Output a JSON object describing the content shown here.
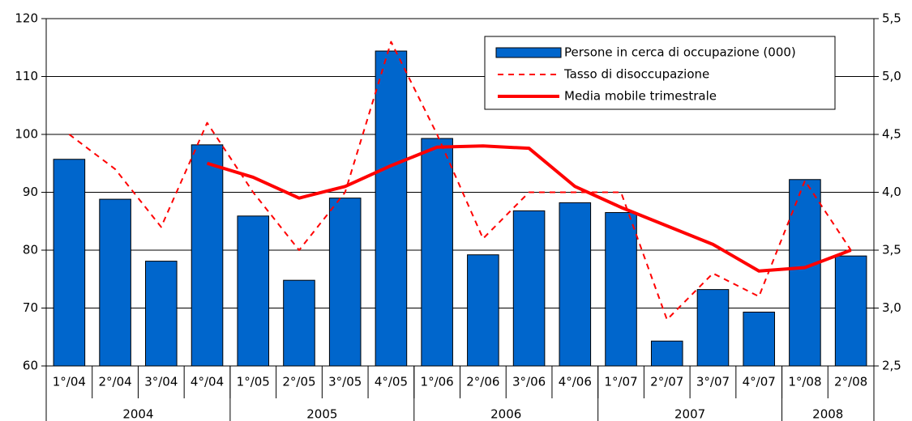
{
  "chart_data": {
    "type": "bar-line",
    "categories": [
      "1°/04",
      "2°/04",
      "3°/04",
      "4°/04",
      "1°/05",
      "2°/05",
      "3°/05",
      "4°/05",
      "1°/06",
      "2°/06",
      "3°/06",
      "4°/06",
      "1°/07",
      "2°/07",
      "3°/07",
      "4°/07",
      "1°/08",
      "2°/08"
    ],
    "years": [
      "2004",
      "2004",
      "2004",
      "2004",
      "2005",
      "2005",
      "2005",
      "2005",
      "2006",
      "2006",
      "2006",
      "2006",
      "2007",
      "2007",
      "2007",
      "2007",
      "2008",
      "2008"
    ],
    "series": [
      {
        "name": "Persone in cerca di occupazione (000)",
        "type": "bar",
        "color": "#0066cc",
        "values": [
          95.7,
          88.8,
          78.1,
          98.2,
          85.9,
          74.8,
          89.0,
          114.4,
          99.3,
          79.2,
          86.8,
          88.2,
          86.5,
          64.3,
          73.2,
          69.3,
          92.2,
          79.0
        ]
      },
      {
        "name": "Tasso di disoccupazione",
        "type": "line",
        "dashed": true,
        "color": "#ff0000",
        "axis": "y2",
        "values": [
          4.5,
          4.2,
          3.7,
          4.6,
          4.0,
          3.5,
          4.0,
          5.3,
          4.5,
          3.6,
          4.0,
          4.0,
          4.0,
          2.9,
          3.3,
          3.1,
          4.1,
          3.5
        ]
      },
      {
        "name": "Media mobile trimestrale",
        "type": "line",
        "dashed": false,
        "color": "#ff0000",
        "axis": "y2",
        "values": [
          null,
          null,
          null,
          4.25,
          4.13,
          3.95,
          4.05,
          4.23,
          4.39,
          4.4,
          4.38,
          4.05,
          3.87,
          3.71,
          3.55,
          3.32,
          3.35,
          3.5
        ]
      }
    ],
    "ylim": [
      60,
      120
    ],
    "yticks": [
      60,
      70,
      80,
      90,
      100,
      110,
      120
    ],
    "y2lim": [
      2.5,
      5.5
    ],
    "y2ticks": [
      {
        "value": 2.5,
        "label": "2,5"
      },
      {
        "value": 3.0,
        "label": "3,0"
      },
      {
        "value": 3.5,
        "label": "3,5"
      },
      {
        "value": 4.0,
        "label": "4,0"
      },
      {
        "value": 4.5,
        "label": "4,5"
      },
      {
        "value": 5.0,
        "label": "5,0"
      },
      {
        "value": 5.5,
        "label": "5,5"
      }
    ],
    "grid": true,
    "legend": "top-right"
  }
}
